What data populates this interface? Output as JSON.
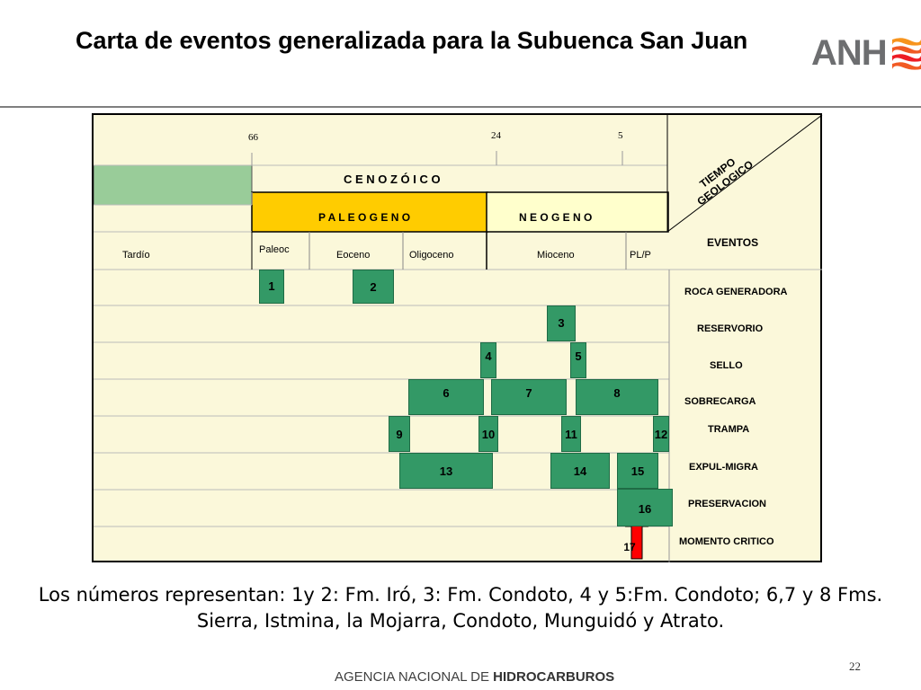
{
  "title": "Carta de eventos generalizada para la Subuenca San Juan",
  "logo": "ANH",
  "chart": {
    "ages": [
      "66",
      "24",
      "5"
    ],
    "era": "C E N O Z Ó I C O",
    "periods": [
      "P A L E O G E N O",
      "N E O G E N O"
    ],
    "epochs": [
      "Tardío",
      "Paleoc",
      "Eoceno",
      "Oligoceno",
      "Mioceno",
      "PL/P"
    ],
    "tiempo_label": "TIEMPO GEOLOGICO",
    "eventos_header": "EVENTOS",
    "events": [
      "ROCA GENERADORA",
      "RESERVORIO",
      "SELLO",
      "SOBRECARGA",
      "TRAMPA",
      "EXPUL-MIGRA",
      "PRESERVACION",
      "MOMENTO CRITICO"
    ],
    "boxes": [
      "1",
      "2",
      "3",
      "4",
      "5",
      "6",
      "7",
      "8",
      "9",
      "10",
      "11",
      "12",
      "13",
      "14",
      "15",
      "16",
      "17"
    ],
    "colors": {
      "box": "#339966",
      "paleogeno": "#ffcc00",
      "neogeno": "#ffffcc",
      "tardio": "#99cc99",
      "background": "#fbf8da",
      "critical": "#ff0000"
    }
  },
  "caption": "Los números representan: 1y 2: Fm. Iró, 3: Fm. Condoto, 4 y 5:Fm. Condoto; 6,7 y 8 Fms. Sierra, Istmina, la Mojarra, Condoto, Munguidó y Atrato.",
  "footer": {
    "prefix": "AGENCIA NACIONAL DE ",
    "bold": "HIDROCARBUROS"
  },
  "page_number": "22"
}
